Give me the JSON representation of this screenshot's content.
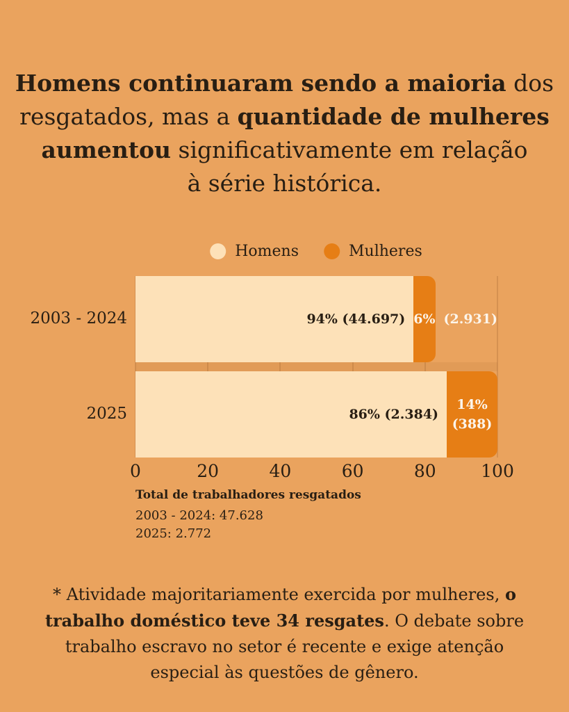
{
  "colors": {
    "background": "#EAA35E",
    "homens": "#FDE1B8",
    "mulheres": "#E67E15",
    "text_dark": "#281E13",
    "text_light": "#FCF5EB"
  },
  "title": {
    "line1_bold": "Homens continuaram sendo a maioria",
    "line1_text": " dos",
    "line2_text": "resgatados, mas a ",
    "line2_bold": "quantidade de mulheres",
    "line3_bold": "aumentou",
    "line3_text": " significativamente em relação",
    "line4_text": "à série histórica."
  },
  "chart_data": {
    "type": "bar",
    "orientation": "horizontal",
    "stacked": true,
    "unit": "%",
    "categories": [
      "2003 - 2024",
      "2025"
    ],
    "series": [
      {
        "name": "Homens",
        "color": "#FDE1B8",
        "values": [
          94,
          86
        ],
        "counts": [
          44697,
          2384
        ]
      },
      {
        "name": "Mulheres",
        "color": "#E67E15",
        "values": [
          6,
          14
        ],
        "counts": [
          2931,
          388
        ]
      }
    ],
    "xlim": [
      0,
      100
    ],
    "x_ticks": [
      "0",
      "20",
      "40",
      "60",
      "80",
      "100"
    ],
    "grid": true,
    "legend": {
      "position": "top",
      "items": [
        "Homens",
        "Mulheres"
      ]
    },
    "bar_labels": {
      "row0_homens": "94% (44.697)",
      "row0_mulheres_inside": "6%",
      "row0_mulheres_outside": "(2.931)",
      "row1_homens": "86% (2.384)",
      "row1_mulheres_line1": "14%",
      "row1_mulheres_line2": "(388)"
    }
  },
  "totals": {
    "heading": "Total de trabalhadores resgatados",
    "line1": "2003 - 2024: 47.628",
    "line2": "2025: 2.772"
  },
  "footnote": {
    "line1_text": "* Atividade majoritariamente exercida por mulheres, ",
    "line1_bold": "o",
    "line2_bold": "trabalho doméstico teve 34 resgates",
    "line2_text": ". O debate sobre",
    "line3_text": "trabalho escravo no setor é recente e exige atenção",
    "line4_text": "especial às questões de gênero."
  }
}
